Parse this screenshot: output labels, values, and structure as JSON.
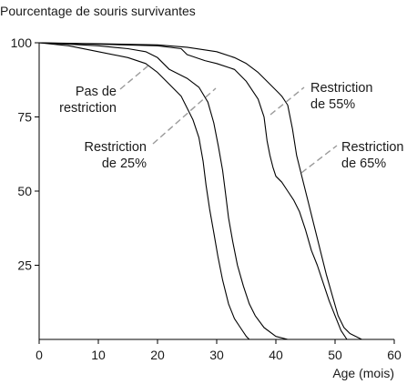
{
  "chart_data": {
    "type": "line",
    "title": "Pourcentage de souris survivantes",
    "xlabel": "Age (mois)",
    "ylabel": "",
    "xlim": [
      0,
      60
    ],
    "ylim": [
      0,
      100
    ],
    "xticks": [
      0,
      10,
      20,
      30,
      40,
      50,
      60
    ],
    "yticks": [
      100,
      75,
      50,
      25
    ],
    "grid": false,
    "legend": "none",
    "series": [
      {
        "name": "Pas de restriction",
        "x": [
          0,
          5,
          10,
          15,
          18,
          20,
          22,
          24,
          25,
          26,
          27,
          27.7,
          28.2,
          28.8,
          29.5,
          30.2,
          31,
          32,
          33,
          34,
          35,
          35.5
        ],
        "y": [
          100,
          99,
          97,
          95,
          93,
          90,
          86,
          82,
          78,
          74,
          68,
          60,
          52,
          44,
          36,
          28,
          20,
          12,
          7,
          4,
          1,
          0
        ]
      },
      {
        "name": "Restriction de 25%",
        "x": [
          0,
          5,
          10,
          15,
          18,
          20,
          22,
          25,
          27,
          28.5,
          29.5,
          30.3,
          31,
          31.5,
          32,
          32.7,
          33.5,
          34.5,
          35.5,
          36.5,
          38,
          40,
          42
        ],
        "y": [
          100,
          99.5,
          99,
          98,
          97,
          95,
          91,
          88,
          85,
          80,
          73,
          65,
          57,
          49,
          41,
          33,
          25,
          18,
          12,
          8,
          4,
          1,
          0
        ]
      },
      {
        "name": "Restriction de 55%",
        "x": [
          0,
          10,
          20,
          24,
          25,
          28,
          30,
          33,
          35,
          37,
          38,
          38.5,
          39,
          39.5,
          40,
          41,
          42,
          43,
          44,
          45,
          46,
          47,
          48,
          49,
          50,
          51,
          52
        ],
        "y": [
          100,
          99.5,
          99,
          98,
          96,
          94,
          93,
          91,
          87,
          81,
          75,
          67,
          62,
          58,
          55,
          53,
          50,
          47,
          43,
          37,
          30,
          25,
          19,
          13,
          8,
          3,
          0
        ]
      },
      {
        "name": "Restriction de 65%",
        "x": [
          0,
          10,
          20,
          25,
          30,
          33,
          35,
          37,
          38.5,
          39.5,
          40.5,
          41,
          42,
          42.8,
          43.5,
          44.5,
          45.5,
          46.5,
          47.5,
          48.5,
          49.5,
          50.5,
          51.5,
          52.5,
          53.5,
          54.5
        ],
        "y": [
          100,
          99.7,
          99.3,
          98.5,
          97,
          95,
          93,
          90,
          87,
          85,
          83,
          82,
          79,
          71,
          62,
          54,
          46,
          38,
          30,
          22,
          15,
          8,
          4,
          2,
          1,
          0
        ]
      }
    ],
    "annotations": [
      {
        "lines": [
          "Pas de",
          "restriction"
        ]
      },
      {
        "lines": [
          "Restriction",
          "de 25%"
        ]
      },
      {
        "lines": [
          "Restriction",
          "de 55%"
        ]
      },
      {
        "lines": [
          "Restriction",
          "de 65%"
        ]
      }
    ]
  }
}
